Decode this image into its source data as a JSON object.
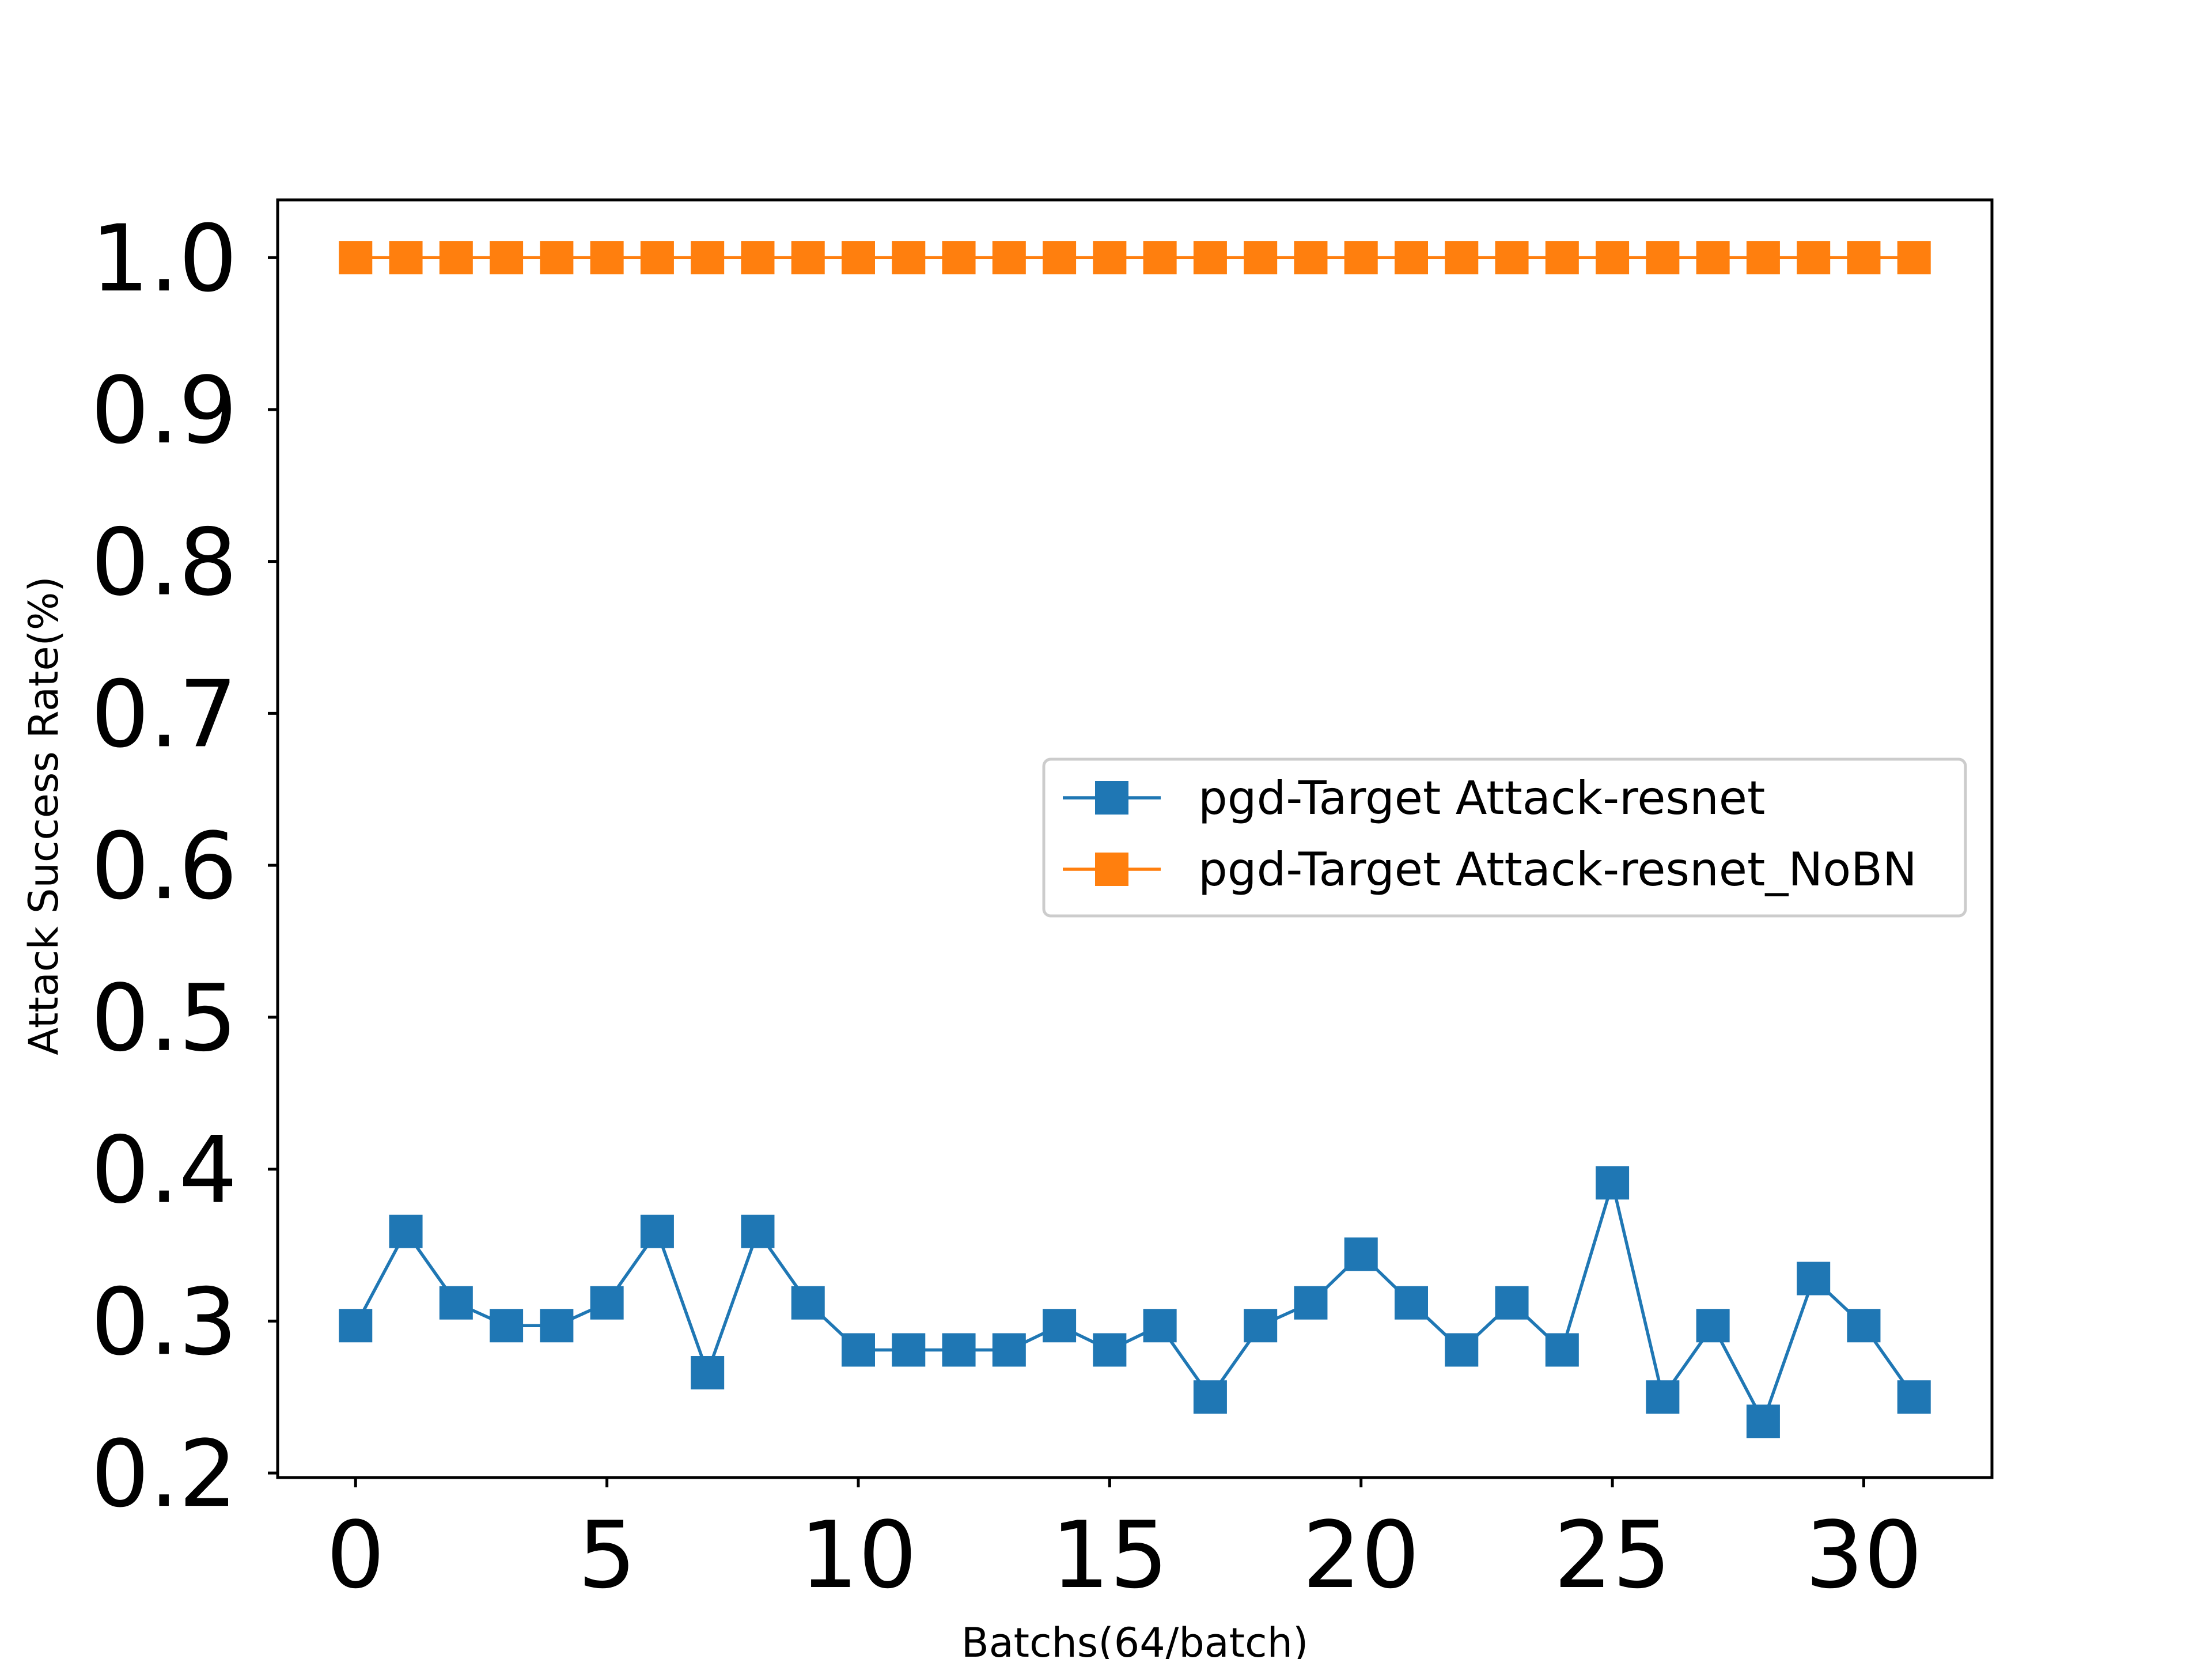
{
  "chart_data": {
    "type": "line",
    "title": "",
    "xlabel": "Batchs(64/batch)",
    "ylabel": "Attack Success Rate(%)",
    "xlim": [
      -1.55,
      32.55
    ],
    "ylim": [
      0.197,
      1.038
    ],
    "xticks": [
      0,
      5,
      10,
      15,
      20,
      25,
      30
    ],
    "yticks": [
      0.2,
      0.3,
      0.4,
      0.5,
      0.6,
      0.7,
      0.8,
      0.9,
      1.0
    ],
    "xtick_labels": [
      "0",
      "5",
      "10",
      "15",
      "20",
      "25",
      "30"
    ],
    "ytick_labels": [
      "0.2",
      "0.3",
      "0.4",
      "0.5",
      "0.6",
      "0.7",
      "0.8",
      "0.9",
      "1.0"
    ],
    "grid": false,
    "legend_position": "center-right",
    "x": [
      0,
      1,
      2,
      3,
      4,
      5,
      6,
      7,
      8,
      9,
      10,
      11,
      12,
      13,
      14,
      15,
      16,
      17,
      18,
      19,
      20,
      21,
      22,
      23,
      24,
      25,
      26,
      27,
      28,
      29,
      30,
      31
    ],
    "series": [
      {
        "name": "pgd-Target Attack-resnet",
        "color": "#1f77b4",
        "marker": "square",
        "values": [
          0.297,
          0.359,
          0.312,
          0.297,
          0.297,
          0.312,
          0.359,
          0.266,
          0.359,
          0.312,
          0.281,
          0.281,
          0.281,
          0.281,
          0.297,
          0.281,
          0.297,
          0.25,
          0.297,
          0.312,
          0.344,
          0.312,
          0.281,
          0.312,
          0.281,
          0.391,
          0.25,
          0.297,
          0.234,
          0.328,
          0.297,
          0.25
        ]
      },
      {
        "name": "pgd-Target Attack-resnet_NoBN",
        "color": "#ff7f0e",
        "marker": "square",
        "values": [
          1.0,
          1.0,
          1.0,
          1.0,
          1.0,
          1.0,
          1.0,
          1.0,
          1.0,
          1.0,
          1.0,
          1.0,
          1.0,
          1.0,
          1.0,
          1.0,
          1.0,
          1.0,
          1.0,
          1.0,
          1.0,
          1.0,
          1.0,
          1.0,
          1.0,
          1.0,
          1.0,
          1.0,
          1.0,
          1.0,
          1.0,
          1.0
        ]
      }
    ]
  }
}
